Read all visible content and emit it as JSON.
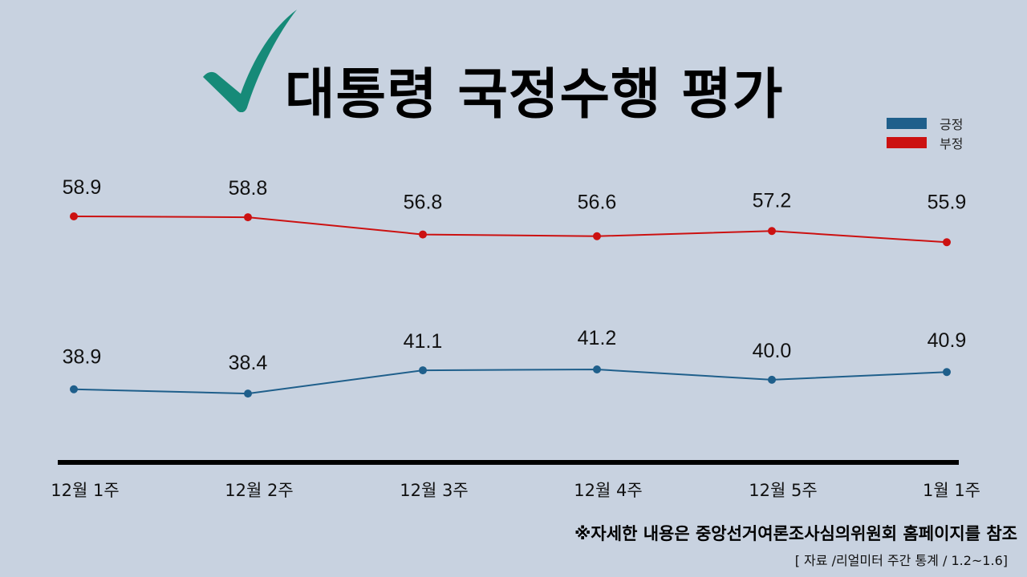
{
  "header": {
    "title": "대통령 국정수행 평가",
    "icon": "checkmark-icon",
    "icon_color": "#168a78"
  },
  "legend": {
    "items": [
      {
        "label": "긍정",
        "color": "#1f5f8b"
      },
      {
        "label": "부정",
        "color": "#cc1111"
      }
    ]
  },
  "footer": {
    "note": "※자세한 내용은 중앙선거여론조사심의위원회 홈페이지를 참조",
    "source": "[ 자료 /리얼미터 주간 통계 / 1.2~1.6]"
  },
  "colors": {
    "background": "#c8d2e0",
    "positive": "#1f5f8b",
    "negative": "#cc1111",
    "axis": "#000000"
  },
  "chart_data": {
    "type": "line",
    "title": "대통령 국정수행 평가",
    "xlabel": "",
    "ylabel": "",
    "categories": [
      "12월 1주",
      "12월 2주",
      "12월 3주",
      "12월 4주",
      "12월 5주",
      "1월 1주"
    ],
    "series": [
      {
        "name": "긍정",
        "color": "#1f5f8b",
        "values": [
          38.9,
          38.4,
          41.1,
          41.2,
          40.0,
          40.9
        ]
      },
      {
        "name": "부정",
        "color": "#cc1111",
        "values": [
          58.9,
          58.8,
          56.8,
          56.6,
          57.2,
          55.9
        ]
      }
    ],
    "grid": false,
    "legend_position": "top-right",
    "data_labels": true
  }
}
